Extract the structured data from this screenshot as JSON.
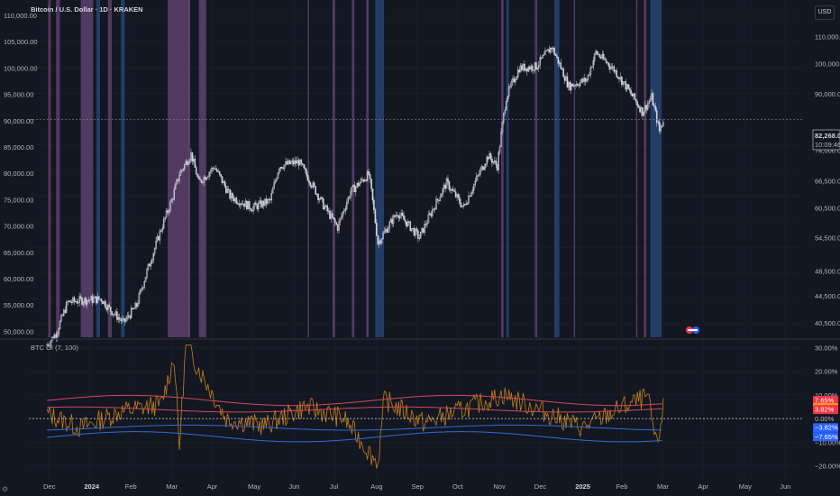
{
  "header": {
    "symbol_title": "Bitcoin / U.S. Dollar · 1D · KRAKEN",
    "currency": "USD"
  },
  "indicator": {
    "label": "BTC OI (7, 100)"
  },
  "price_tag": {
    "price": "82,268.0",
    "countdown": "10:09:46"
  },
  "indicator_tags": [
    {
      "text": "7.65%",
      "color": "#f23645"
    },
    {
      "text": "4.64%",
      "color": "#ff9800"
    },
    {
      "text": "3.82%",
      "color": "#f23645"
    },
    {
      "text": "−3.82%",
      "color": "#2962ff"
    },
    {
      "text": "−7.65%",
      "color": "#2962ff"
    }
  ],
  "colors": {
    "background": "#131722",
    "grid": "#1e222d",
    "candle": "#d1d4dc",
    "purple_band": "#6b4a7a",
    "blue_band": "#2b4f86",
    "oi_line": "#c47f1a",
    "upper_band": "#d04a5a",
    "lower_band": "#2f6bd6"
  },
  "icons": {
    "settings": "gear-icon",
    "events": "flag-icon"
  },
  "chart_data": [
    {
      "type": "candlestick",
      "title": "Bitcoin / U.S. Dollar · 1D · KRAKEN",
      "x_tick_labels": [
        "Dec",
        "2024",
        "Feb",
        "Mar",
        "Apr",
        "May",
        "Jun",
        "Jul",
        "Aug",
        "Sep",
        "Oct",
        "Nov",
        "Dec",
        "2025",
        "Feb",
        "Mar",
        "Apr",
        "May",
        "Jun"
      ],
      "left_axis_labels": [
        "110,000.00",
        "105,000.00",
        "100,000.00",
        "95,000.00",
        "90,000.00",
        "85,000.00",
        "80,000.00",
        "75,000.00",
        "70,000.00",
        "65,000.00",
        "60,000.00",
        "55,000.00",
        "50,000.00"
      ],
      "right_axis_labels": [
        "110,000.0",
        "100,000.0",
        "90,000.0",
        "74,000.0",
        "66,500.0",
        "60,500.0",
        "54,500.0",
        "48,500.0",
        "44,500.0",
        "40,500.0"
      ],
      "right_axis_scale": "log",
      "ylim": [
        38000,
        118000
      ],
      "last_price": 82268.0,
      "x": [
        "2023-11-24",
        "2023-12-01",
        "2023-12-10",
        "2023-12-20",
        "2024-01-05",
        "2024-01-11",
        "2024-01-22",
        "2024-02-01",
        "2024-02-14",
        "2024-02-28",
        "2024-03-05",
        "2024-03-14",
        "2024-03-20",
        "2024-04-01",
        "2024-04-13",
        "2024-04-30",
        "2024-05-14",
        "2024-05-21",
        "2024-06-05",
        "2024-06-24",
        "2024-07-05",
        "2024-07-15",
        "2024-07-29",
        "2024-08-05",
        "2024-08-20",
        "2024-09-06",
        "2024-09-27",
        "2024-10-10",
        "2024-10-29",
        "2024-11-05",
        "2024-11-12",
        "2024-11-22",
        "2024-12-05",
        "2024-12-17",
        "2024-12-30",
        "2025-01-13",
        "2025-01-20",
        "2025-02-03",
        "2025-02-25",
        "2025-03-04",
        "2025-03-10",
        "2025-03-13"
      ],
      "close": [
        37500,
        39000,
        43500,
        43800,
        44000,
        42500,
        40500,
        43000,
        51800,
        62000,
        68000,
        73000,
        66000,
        69800,
        63000,
        60500,
        62000,
        70000,
        71000,
        61000,
        56500,
        64000,
        68000,
        53500,
        59500,
        54500,
        66000,
        60500,
        72500,
        70000,
        89000,
        98500,
        99000,
        106000,
        92500,
        94500,
        104000,
        98000,
        84500,
        89000,
        79000,
        82268
      ],
      "events": [
        "bands shaded purple",
        "bands shaded blue"
      ]
    },
    {
      "type": "line",
      "title": "BTC OI (7, 100)",
      "right_axis_labels": [
        "30.00%",
        "20.00%",
        "10.00%",
        "0.00%",
        "−10.00%",
        "−20.00%"
      ],
      "ylim": [
        -22,
        32
      ],
      "series": [
        {
          "last": 4.64,
          "x": [
            "2023-11-24",
            "2023-12-20",
            "2024-01-20",
            "2024-02-20",
            "2024-03-01",
            "2024-03-05",
            "2024-03-10",
            "2024-04-10",
            "2024-05-10",
            "2024-06-10",
            "2024-07-10",
            "2024-08-05",
            "2024-08-10",
            "2024-09-10",
            "2024-10-10",
            "2024-11-10",
            "2024-12-10",
            "2025-01-10",
            "2025-02-10",
            "2025-03-01",
            "2025-03-08",
            "2025-03-13"
          ],
          "values": [
            2,
            -4,
            3,
            6,
            26,
            -12,
            31,
            0,
            -3,
            5,
            0,
            -19,
            8,
            -2,
            4,
            10,
            3,
            -4,
            5,
            9,
            -12,
            4.64
          ]
        },
        {
          "last": 7.65,
          "values_flat": 7.65
        },
        {
          "last": 3.82,
          "values_flat": 3.82
        },
        {
          "last": -3.82,
          "values_flat": -3.82
        },
        {
          "last": -7.65,
          "values_flat": -7.65
        }
      ]
    }
  ]
}
